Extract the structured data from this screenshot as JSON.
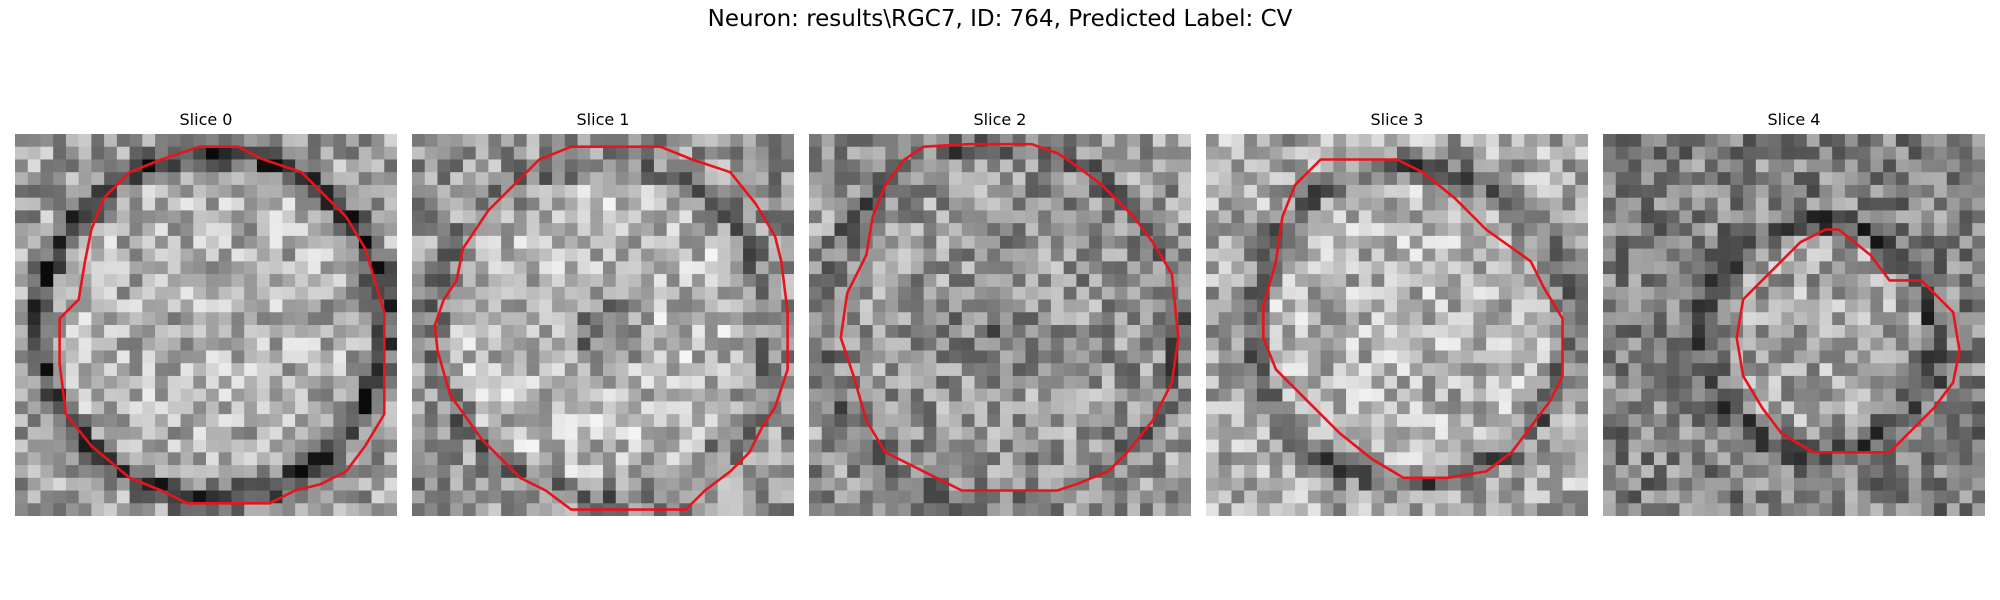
{
  "figure": {
    "title": "Neuron: results\\RGC7, ID: 764, Predicted Label: CV"
  },
  "panels": [
    {
      "title": "Slice 0"
    },
    {
      "title": "Slice 1"
    },
    {
      "title": "Slice 2"
    },
    {
      "title": "Slice 3"
    },
    {
      "title": "Slice 4"
    }
  ],
  "colors": {
    "contour": "#e8141c",
    "background": "#ffffff"
  }
}
